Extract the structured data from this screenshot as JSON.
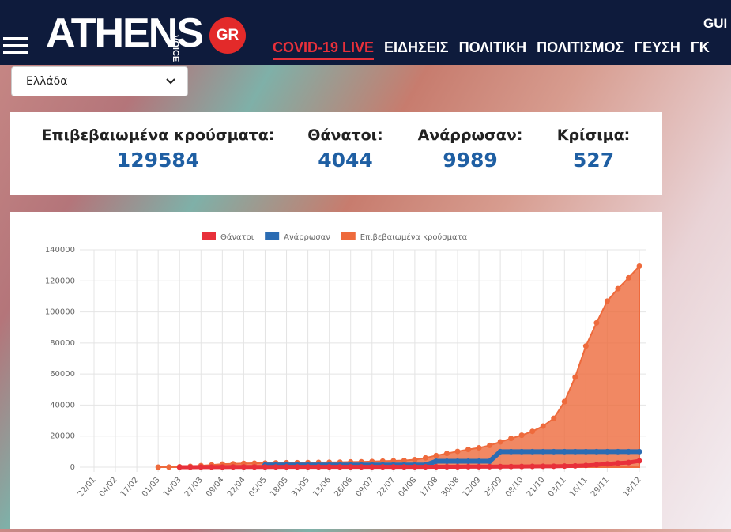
{
  "header": {
    "logo": "ATHENS",
    "logo_sub": "VOICE",
    "logo_badge": "GR",
    "top_link": "GUI",
    "nav": [
      "COVID-19 LIVE",
      "ΕΙΔΗΣΕΙΣ",
      "ΠΟΛΙΤΙΚΗ",
      "ΠΟΛΙΤΙΣΜΟΣ",
      "ΓΕΥΣΗ",
      "ΓΚ"
    ]
  },
  "selector": "Ελλάδα",
  "stats": [
    {
      "label": "Επιβεβαιωμένα κρούσματα:",
      "value": "129584"
    },
    {
      "label": "Θάνατοι:",
      "value": "4044"
    },
    {
      "label": "Ανάρρωσαν:",
      "value": "9989"
    },
    {
      "label": "Κρίσιμα:",
      "value": "527"
    }
  ],
  "chart_data": {
    "type": "line",
    "categories": [
      "22/01",
      null,
      "04/02",
      null,
      "17/02",
      null,
      "01/03",
      null,
      "14/03",
      null,
      "27/03",
      null,
      "09/04",
      null,
      "22/04",
      null,
      "05/05",
      null,
      "18/05",
      null,
      "31/05",
      null,
      "13/06",
      null,
      "26/06",
      null,
      "09/07",
      null,
      "22/07",
      null,
      "04/08",
      null,
      "17/08",
      null,
      "30/08",
      null,
      "12/09",
      null,
      "25/09",
      null,
      "08/10",
      null,
      "21/10",
      null,
      "03/11",
      null,
      "16/11",
      null,
      "29/11",
      null,
      null,
      "18/12"
    ],
    "series": [
      {
        "name": "Θάνατοι",
        "color": "#e8303a",
        "values": [
          null,
          null,
          null,
          null,
          null,
          null,
          null,
          null,
          3,
          10,
          32,
          63,
          90,
          102,
          121,
          136,
          146,
          151,
          163,
          172,
          175,
          180,
          183,
          190,
          191,
          192,
          193,
          193,
          197,
          202,
          210,
          216,
          232,
          243,
          266,
          288,
          305,
          338,
          376,
          403,
          417,
          495,
          549,
          603,
          673,
          829,
          1106,
          1527,
          2102,
          2606,
          3003,
          4044
        ]
      },
      {
        "name": "Ανάρρωσαν",
        "color": "#2b6cb3",
        "values": [
          null,
          null,
          null,
          null,
          null,
          null,
          null,
          null,
          null,
          null,
          null,
          null,
          null,
          null,
          null,
          null,
          1374,
          1374,
          1374,
          1374,
          1374,
          1374,
          1374,
          1374,
          1374,
          1374,
          1374,
          1374,
          1374,
          1374,
          1374,
          1374,
          3804,
          3804,
          3804,
          3804,
          3804,
          3804,
          9989,
          9989,
          9989,
          9989,
          9989,
          9989,
          9989,
          9989,
          9989,
          9989,
          9989,
          9989,
          9989,
          9989
        ]
      },
      {
        "name": "Επιβεβαιωμένα κρούσματα",
        "color": "#ee6a3c",
        "values": [
          null,
          null,
          null,
          null,
          null,
          null,
          7,
          66,
          228,
          495,
          966,
          1415,
          1955,
          2192,
          2401,
          2566,
          2632,
          2744,
          2836,
          2878,
          2917,
          3058,
          3121,
          3203,
          3343,
          3432,
          3626,
          3910,
          4077,
          4279,
          4855,
          5942,
          7472,
          8819,
          10145,
          11386,
          12452,
          14041,
          16286,
          18475,
          20541,
          23060,
          26469,
          31496,
          42183,
          58000,
          78000,
          93000,
          107000,
          115000,
          122000,
          129584
        ]
      }
    ],
    "ylim": [
      0,
      140000
    ],
    "yticks": [
      0,
      20000,
      40000,
      60000,
      80000,
      100000,
      120000,
      140000
    ],
    "grid": true,
    "legend": "top"
  }
}
